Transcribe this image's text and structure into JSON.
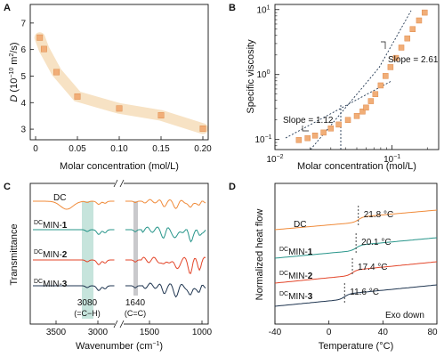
{
  "colors": {
    "marker_fill": "#f1ae78",
    "marker_stroke": "#e08a4a",
    "band": "#f7e2c4",
    "dc": "#f08b3a",
    "min1": "#27958a",
    "min2": "#e3462a",
    "min3": "#1f3550",
    "teal_band": "#c6e4dc",
    "grey_band": "#c9c9cc"
  },
  "chart_data": [
    {
      "panel": "A",
      "type": "scatter",
      "x": [
        0.005,
        0.01,
        0.025,
        0.05,
        0.1,
        0.15,
        0.2
      ],
      "y": [
        6.45,
        6.02,
        5.15,
        4.23,
        3.78,
        3.52,
        3.02
      ],
      "xlim": [
        0,
        0.2
      ],
      "ylim": [
        2.6,
        7.7
      ],
      "xticks": [
        "0",
        "0.05",
        "0.10",
        "0.15",
        "0.20"
      ],
      "yticks": [
        "3",
        "4",
        "5",
        "6",
        "7"
      ],
      "xlabel": "Molar concentration (mol/L)",
      "ylabel_main": "D",
      "ylabel_unit": "(10",
      "ylabel_exp": "−10",
      "ylabel_rest": " m",
      "ylabel_exp2": "2",
      "ylabel_end": "/s)"
    },
    {
      "panel": "B",
      "type": "scatter",
      "scale": "log-log",
      "x": [
        0.016,
        0.019,
        0.022,
        0.026,
        0.03,
        0.035,
        0.042,
        0.05,
        0.056,
        0.06,
        0.066,
        0.072,
        0.08,
        0.088,
        0.097,
        0.108,
        0.12,
        0.135,
        0.15,
        0.17,
        0.19
      ],
      "y": [
        0.098,
        0.105,
        0.115,
        0.128,
        0.148,
        0.17,
        0.2,
        0.23,
        0.27,
        0.31,
        0.39,
        0.5,
        0.68,
        0.95,
        1.3,
        1.8,
        2.6,
        3.6,
        5.0,
        6.8,
        9.0
      ],
      "xlim": [
        0.01,
        0.25
      ],
      "ylim": [
        0.07,
        12
      ],
      "xticks": [
        "10",
        "10"
      ],
      "xtick_exps": [
        "−2",
        "−1"
      ],
      "yticks": [
        "10",
        "10",
        "10"
      ],
      "ytick_exps": [
        "−1",
        "0",
        "1"
      ],
      "xlabel": "Molar concentration (mol/L)",
      "ylabel": "Specific viscosity",
      "annotations": [
        "Slope = 1.12",
        "Slope = 2.61"
      ]
    },
    {
      "panel": "C",
      "type": "line",
      "series_labels": [
        {
          "pre": "",
          "name": "DC",
          "num": ""
        },
        {
          "pre": "DC",
          "name": "MIN-",
          "num": "1"
        },
        {
          "pre": "DC",
          "name": "MIN-",
          "num": "2"
        },
        {
          "pre": "DC",
          "name": "MIN-",
          "num": "3"
        }
      ],
      "xticks": [
        "3500",
        "3000",
        "1500",
        "1000"
      ],
      "xlabel": "Wavenumber (cm",
      "xlabel_exp": "−1",
      "xlabel_end": ")",
      "ylabel": "Transmittance",
      "annotations": [
        {
          "value": "3080",
          "assign": "(=C−H)"
        },
        {
          "value": "1640",
          "assign": "(C=C)"
        }
      ],
      "axis_break": "//"
    },
    {
      "panel": "D",
      "type": "line",
      "series_labels": [
        {
          "pre": "",
          "name": "DC",
          "num": ""
        },
        {
          "pre": "DC",
          "name": "MIN-",
          "num": "1"
        },
        {
          "pre": "DC",
          "name": "MIN-",
          "num": "2"
        },
        {
          "pre": "DC",
          "name": "MIN-",
          "num": "3"
        }
      ],
      "tg_labels": [
        "21.8 °C",
        "20.1 °C",
        "17.4 °C",
        "11.6 °C"
      ],
      "tg_values": [
        21.8,
        20.1,
        17.4,
        11.6
      ],
      "xlim": [
        -40,
        80
      ],
      "xticks": [
        "-40",
        "0",
        "40",
        "80"
      ],
      "xlabel": "Temperature (°C)",
      "ylabel": "Normalized heat flow",
      "note": "Exo down"
    }
  ]
}
